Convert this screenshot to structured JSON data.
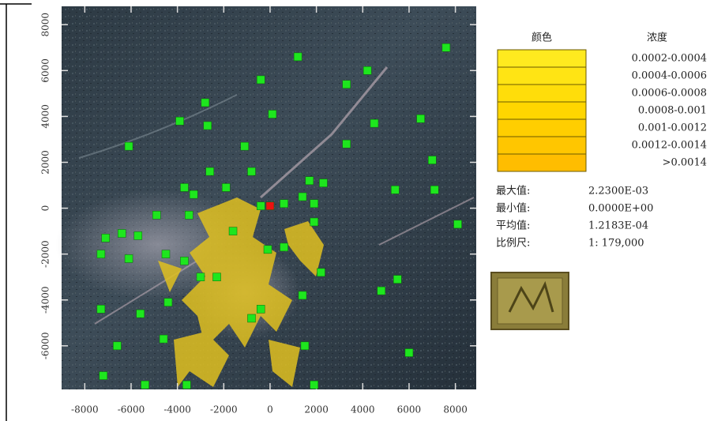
{
  "chart_data": {
    "type": "scatter",
    "xlim": [
      -9000,
      8900
    ],
    "ylim": [
      -7900,
      8800
    ],
    "xticks": [
      -8000,
      -6000,
      -4000,
      -2000,
      0,
      2000,
      4000,
      6000,
      8000
    ],
    "yticks": [
      -6000,
      -4000,
      -2000,
      0,
      2000,
      4000,
      6000,
      8000
    ],
    "series": [
      {
        "color": "#1ee61e",
        "x": [
          7600,
          1200,
          4200,
          -400,
          3300,
          -2800,
          100,
          -3900,
          4500,
          6500,
          -2700,
          -6100,
          -1100,
          3300,
          7000,
          -2600,
          -800,
          -3700,
          -1900,
          1700,
          2300,
          5400,
          7100,
          -3300,
          1400,
          -400,
          600,
          1900,
          -4900,
          -3500,
          8100,
          -7100,
          -5700,
          -6400,
          -7300,
          -6100,
          -4500,
          -3700,
          -1600,
          -100,
          600,
          1900,
          2200,
          -3000,
          -2300,
          5500,
          4800,
          1400,
          -4400,
          -7300,
          -5600,
          -400,
          -800,
          -4600,
          -6600,
          1500,
          6000,
          -7200,
          -5400,
          -3600,
          1900
        ],
        "y": [
          7000,
          6600,
          6000,
          5600,
          5400,
          4600,
          4100,
          3800,
          3700,
          3900,
          3600,
          2700,
          2700,
          2800,
          2100,
          1600,
          1600,
          900,
          900,
          1200,
          1100,
          800,
          800,
          600,
          500,
          100,
          200,
          200,
          -300,
          -300,
          -700,
          -1300,
          -1200,
          -1100,
          -2000,
          -2200,
          -2000,
          -2300,
          -1000,
          -1800,
          -1700,
          -600,
          -2800,
          -3000,
          -3000,
          -3100,
          -3600,
          -3800,
          -4100,
          -4400,
          -4600,
          -4400,
          -4800,
          -5700,
          -6000,
          -6000,
          -6300,
          -7300,
          -7700,
          -7700,
          -7700
        ]
      },
      {
        "color": "#ee1111",
        "x": [
          0
        ],
        "y": [
          100
        ]
      }
    ]
  },
  "legend": {
    "headers": [
      "颜色",
      "浓度"
    ],
    "rows": [
      {
        "label": "0.0002-0.0004",
        "color": "#ffea1f"
      },
      {
        "label": "0.0004-0.0006",
        "color": "#ffe414"
      },
      {
        "label": "0.0006-0.0008",
        "color": "#ffdd0a"
      },
      {
        "label": "0.0008-0.001",
        "color": "#ffd600"
      },
      {
        "label": "0.001-0.0012",
        "color": "#ffce00"
      },
      {
        "label": "0.0012-0.0014",
        "color": "#ffc600"
      },
      {
        "label": ">0.0014",
        "color": "#ffbd00"
      }
    ]
  },
  "stats": [
    {
      "label": "最大值:",
      "value": "2.2300E-03"
    },
    {
      "label": "最小值:",
      "value": "0.0000E+00"
    },
    {
      "label": "平均值:",
      "value": "1.2183E-04"
    },
    {
      "label": "比例尺:",
      "value": "1: 179,000"
    }
  ]
}
